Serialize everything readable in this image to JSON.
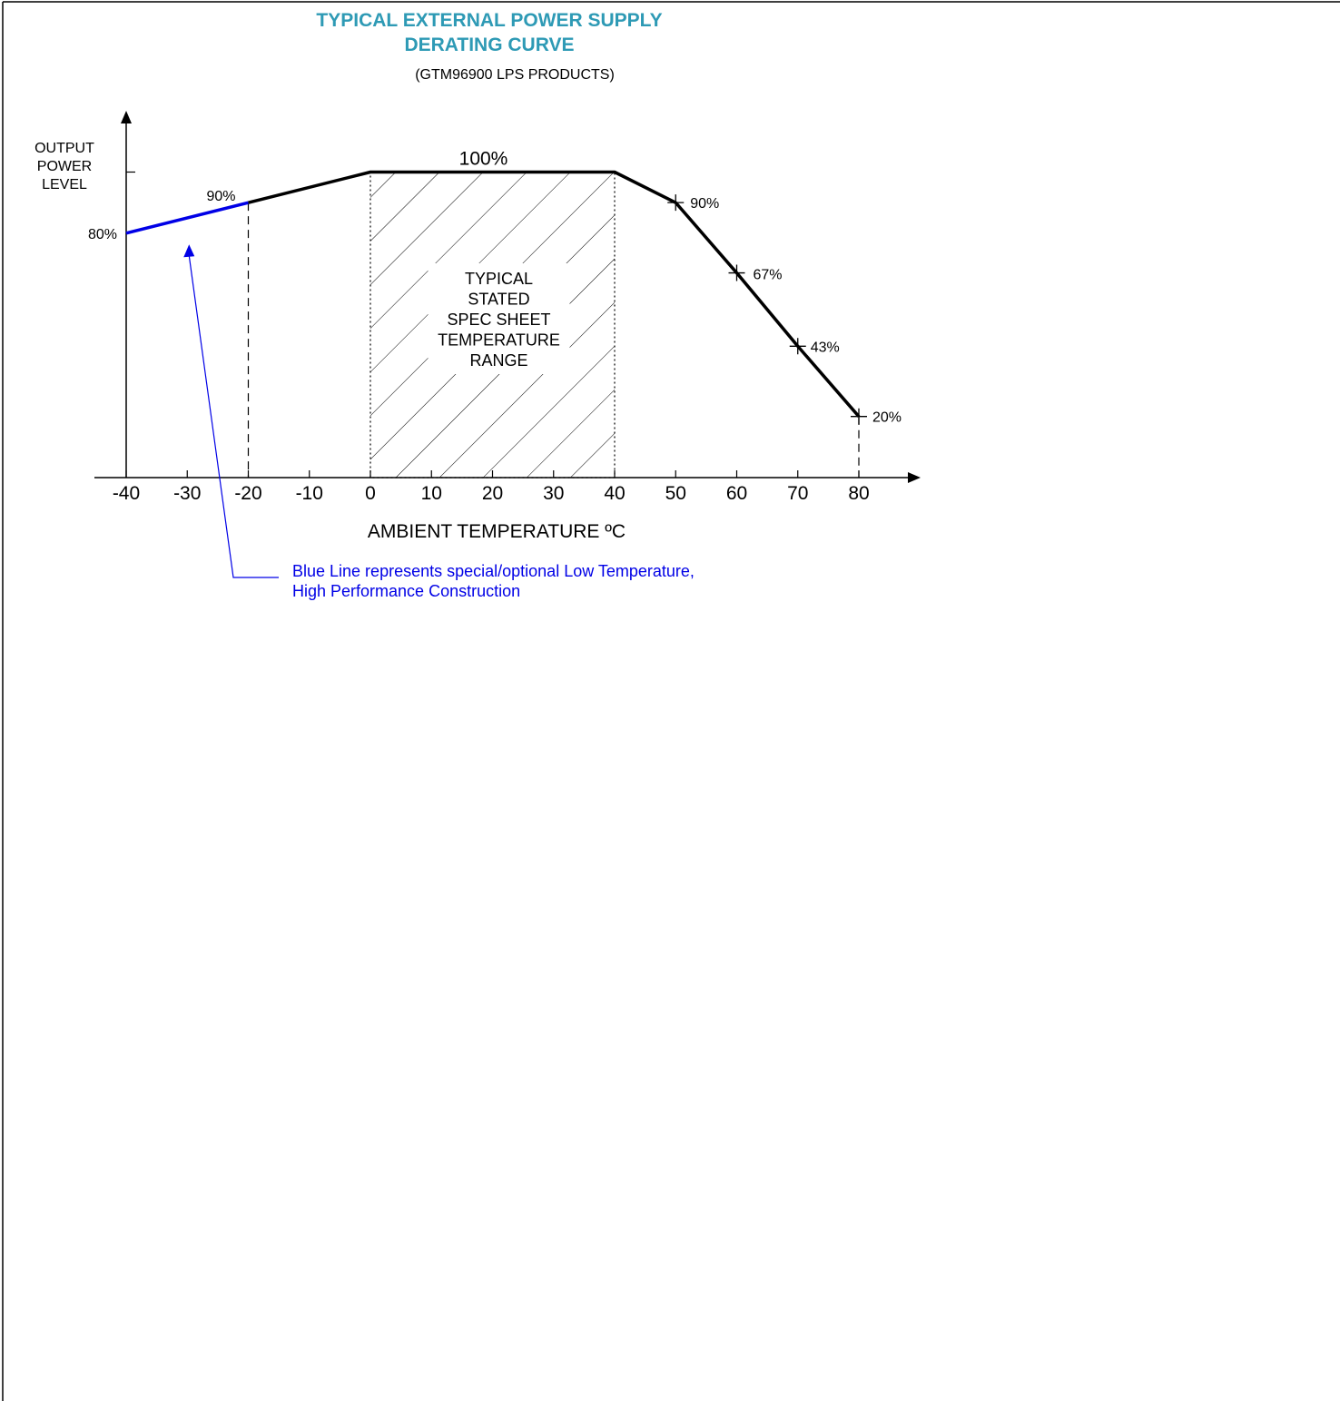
{
  "chart_data": {
    "type": "line",
    "title_line1": "TYPICAL EXTERNAL POWER SUPPLY",
    "title_line2": "DERATING CURVE",
    "subtitle": "(GTM96900 LPS PRODUCTS)",
    "xlabel": "AMBIENT TEMPERATURE ºC",
    "ylabel_lines": [
      "OUTPUT",
      "POWER",
      "LEVEL"
    ],
    "xlim": [
      -40,
      80
    ],
    "ylim": [
      0,
      100
    ],
    "x_ticks": [
      -40,
      -30,
      -20,
      -10,
      0,
      10,
      20,
      30,
      40,
      50,
      60,
      70,
      80
    ],
    "series": [
      {
        "color": "#0000e6",
        "x": [
          -40,
          -20
        ],
        "y": [
          80,
          90
        ]
      },
      {
        "color": "#000000",
        "x": [
          -20,
          0,
          40,
          50,
          60,
          70,
          80
        ],
        "y": [
          90,
          100,
          100,
          90,
          67,
          43,
          20
        ]
      }
    ],
    "point_labels": [
      {
        "x": -40,
        "y": 80,
        "text": "80%"
      },
      {
        "x": -20,
        "y": 90,
        "text": "90%"
      },
      {
        "x": 20,
        "y": 100,
        "text": "100%"
      },
      {
        "x": 50,
        "y": 90,
        "text": "90%"
      },
      {
        "x": 60,
        "y": 67,
        "text": "67%"
      },
      {
        "x": 70,
        "y": 43,
        "text": "43%"
      },
      {
        "x": 80,
        "y": 20,
        "text": "20%"
      }
    ],
    "markers": [
      {
        "x": 50,
        "y": 90
      },
      {
        "x": 60,
        "y": 67
      },
      {
        "x": 70,
        "y": 43
      },
      {
        "x": 80,
        "y": 20
      }
    ],
    "shaded_region": {
      "x": [
        0,
        40
      ],
      "y": [
        0,
        100
      ],
      "lines": [
        "TYPICAL",
        "STATED",
        "SPEC SHEET",
        "TEMPERATURE",
        "RANGE"
      ]
    },
    "dashed_drop_lines": [
      {
        "x": -20,
        "y": 90
      },
      {
        "x": 80,
        "y": 20
      }
    ],
    "annotation": {
      "lines": [
        "Blue Line represents special/optional Low Temperature,",
        "High Performance Construction"
      ],
      "color": "#0000e6",
      "arrow_to": {
        "x": -30,
        "y": 76
      }
    },
    "colors": {
      "title": "#2e9ab5",
      "blue": "#0000e6",
      "ink": "#000000"
    },
    "grid": false
  }
}
